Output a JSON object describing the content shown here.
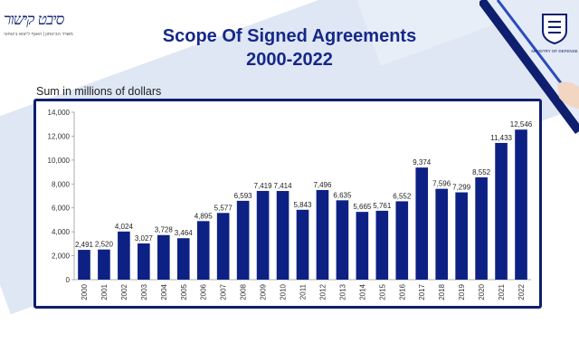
{
  "header": {
    "title_line1": "Scope Of Signed Agreements",
    "title_line2": "2000-2022",
    "logo_left_mark": "סיבט קישור",
    "logo_left_tagline": "משרד הביטחון | האגף לייצוא ביטחוני",
    "logo_right_text": "MINISTRY OF DEFENSE"
  },
  "colors": {
    "bar": "#0d2185",
    "frame": "#0d1f6e",
    "title": "#16288a"
  },
  "chart_data": {
    "type": "bar",
    "title": "Scope Of Signed Agreements 2000-2022",
    "ylabel": "Sum in millions of dollars",
    "xlabel": "",
    "ylim": [
      0,
      14000
    ],
    "yticks": [
      "0",
      "2,000",
      "4,000",
      "6,000",
      "8,000",
      "10,000",
      "12,000",
      "14,000"
    ],
    "grid": false,
    "legend": "none",
    "categories": [
      "2000",
      "2001",
      "2002",
      "2003",
      "2004",
      "2005",
      "2006",
      "2007",
      "2008",
      "2009",
      "2010",
      "2011",
      "2012",
      "2013",
      "2014",
      "2015",
      "2016",
      "2017",
      "2018",
      "2019",
      "2020",
      "2021",
      "2022"
    ],
    "values": [
      2491,
      2520,
      4024,
      3027,
      3728,
      3464,
      4895,
      5577,
      6593,
      7419,
      7414,
      5843,
      7496,
      6635,
      5665,
      5761,
      6552,
      9374,
      7596,
      7299,
      8552,
      11433,
      12546
    ],
    "value_labels": [
      "2,491",
      "2,520",
      "4,024",
      "3,027",
      "3,728",
      "3,464",
      "4,895",
      "5,577",
      "6,593",
      "7,419",
      "7,414",
      "5,843",
      "7,496",
      "6,635",
      "5,665",
      "5,761",
      "6,552",
      "9,374",
      "7,596",
      "7,299",
      "8,552",
      "11,433",
      "12,546"
    ]
  }
}
